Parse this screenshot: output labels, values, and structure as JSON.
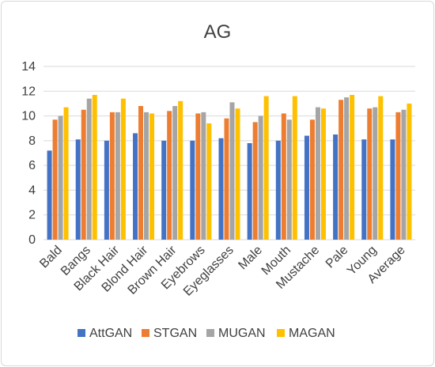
{
  "chart_data": {
    "type": "bar",
    "title": "AG",
    "categories": [
      "Bald",
      "Bangs",
      "Black Hair",
      "Blond Hair",
      "Brown Hair",
      "Eyebrows",
      "Eyeglasses",
      "Male",
      "Mouth",
      "Mustache",
      "Pale",
      "Young",
      "Average"
    ],
    "series": [
      {
        "name": "AttGAN",
        "color": "#4472C4",
        "values": [
          7.2,
          8.1,
          8.0,
          8.6,
          8.0,
          8.0,
          8.2,
          7.8,
          8.0,
          8.4,
          8.5,
          8.1,
          8.1
        ]
      },
      {
        "name": "STGAN",
        "color": "#ED7D31",
        "values": [
          9.7,
          10.5,
          10.3,
          10.8,
          10.4,
          10.2,
          9.8,
          9.5,
          10.2,
          9.7,
          11.3,
          10.6,
          10.3
        ]
      },
      {
        "name": "MUGAN",
        "color": "#A5A5A5",
        "values": [
          10.0,
          11.4,
          10.3,
          10.3,
          10.8,
          10.3,
          11.1,
          10.0,
          9.7,
          10.7,
          11.5,
          10.7,
          10.5
        ]
      },
      {
        "name": "MAGAN",
        "color": "#FFC000",
        "values": [
          10.7,
          11.7,
          11.4,
          10.2,
          11.2,
          9.4,
          10.6,
          11.6,
          11.6,
          10.6,
          11.7,
          11.6,
          11.0
        ]
      }
    ],
    "ylim": [
      0,
      14
    ],
    "yticks": [
      0,
      2,
      4,
      6,
      8,
      10,
      12,
      14
    ],
    "xlabel": "",
    "ylabel": "",
    "grid": true,
    "legend": "bottom"
  }
}
